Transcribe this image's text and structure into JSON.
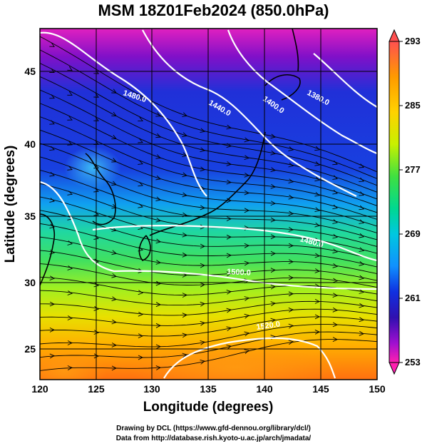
{
  "title": "MSM 18Z01Feb2024 (850.0hPa)",
  "axes": {
    "xlabel": "Longitude (degrees)",
    "ylabel": "Latitude  (degrees)",
    "xticks": [
      "120",
      "125",
      "130",
      "135",
      "140",
      "145",
      "150"
    ],
    "yticks": [
      "25",
      "30",
      "35",
      "40",
      "45"
    ]
  },
  "colorbar": {
    "ticks": [
      "293",
      "285",
      "277",
      "269",
      "261",
      "253"
    ],
    "colors": [
      "#ff5050",
      "#ff9a00",
      "#ffd200",
      "#c8f000",
      "#40e040",
      "#00d890",
      "#00c8e0",
      "#1090ff",
      "#1030e0",
      "#3010b0",
      "#a010d0",
      "#ff20b0"
    ]
  },
  "contour_labels": {
    "l1480a": "1480.0",
    "l1440": "1440.0",
    "l1400": "1400.0",
    "l1380": "1380.0",
    "l1480b": "1480.0",
    "l1500": "1500.0",
    "l1520": "1520.0"
  },
  "credits": {
    "line1": "Drawing by DCL (https://www.gfd-dennou.org/library/dcl/)",
    "line2": "Data from http://database.rish.kyoto-u.ac.jp/arch/jmadata/"
  }
}
